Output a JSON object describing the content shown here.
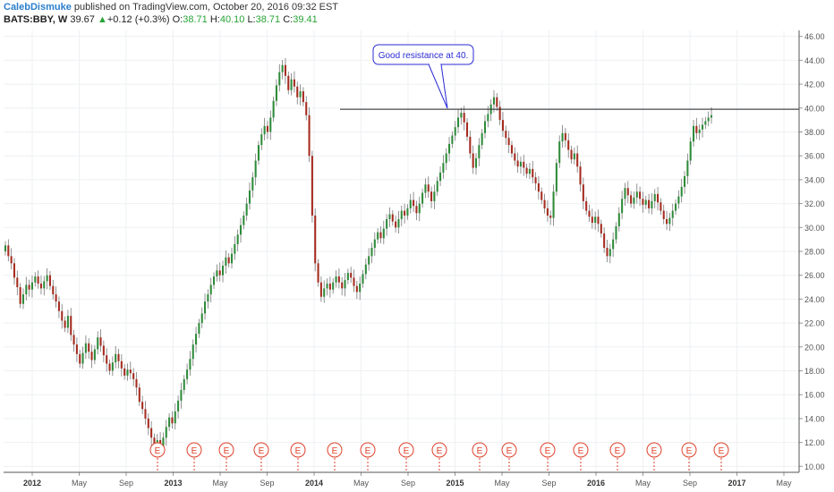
{
  "header": {
    "author": "CalebDismuke",
    "published_text": "published on TradingView.com, October 20, 2016 09:32 EST",
    "symbol": "BATS:BBY, W",
    "last": "39.67",
    "arrow": "▲",
    "change": "+0.12 (+0.3%)",
    "o_label": "O:",
    "o_value": "38.71",
    "h_label": "H:",
    "h_value": "40.10",
    "l_label": "L:",
    "l_value": "38.71",
    "c_label": "C:",
    "c_value": "39.41"
  },
  "colors": {
    "up": "#2e8b3a",
    "down": "#a52b1f",
    "grid": "#eef0f3",
    "axis_text": "#555555",
    "earnings": "#e0402a",
    "callout_border": "#2b2bd6",
    "callout_text": "#2b2bd6"
  },
  "earnings_marker_label": "E",
  "chart_data": {
    "type": "candlestick",
    "title": "",
    "xlabel": "",
    "ylabel": "",
    "x_ticks": [
      "2012",
      "May",
      "Sep",
      "2013",
      "May",
      "Sep",
      "2014",
      "May",
      "Sep",
      "2015",
      "May",
      "Sep",
      "2016",
      "May",
      "Sep",
      "2017",
      "May"
    ],
    "y_ticks": [
      "46.00",
      "44.00",
      "42.00",
      "40.00",
      "38.00",
      "36.00",
      "34.00",
      "32.00",
      "30.00",
      "28.00",
      "26.00",
      "24.00",
      "22.00",
      "20.00",
      "18.00",
      "16.00",
      "14.00",
      "12.00",
      "10.00"
    ],
    "ylim": [
      9.5,
      46.5
    ],
    "grid": true,
    "resistance_level": 39.9,
    "annotation": "Good resistance at 40.",
    "series": [
      {
        "values": [
          [
            28.0,
            28.5
          ],
          [
            28.5,
            27.6
          ],
          [
            27.6,
            27.0
          ],
          [
            27.0,
            25.8
          ],
          [
            25.8,
            25.0
          ],
          [
            25.0,
            23.6
          ],
          [
            23.6,
            24.4
          ],
          [
            24.4,
            25.2
          ],
          [
            25.2,
            24.8
          ],
          [
            24.8,
            25.4
          ],
          [
            25.4,
            25.9
          ],
          [
            25.9,
            25.3
          ],
          [
            25.3,
            24.9
          ],
          [
            24.9,
            25.5
          ],
          [
            25.5,
            26.0
          ],
          [
            26.0,
            25.1
          ],
          [
            25.1,
            24.4
          ],
          [
            24.4,
            23.8
          ],
          [
            23.8,
            23.0
          ],
          [
            23.0,
            22.2
          ],
          [
            22.2,
            21.6
          ],
          [
            21.6,
            22.6
          ],
          [
            22.6,
            21.0
          ],
          [
            21.0,
            20.2
          ],
          [
            20.2,
            19.4
          ],
          [
            19.4,
            18.6
          ],
          [
            18.6,
            19.5
          ],
          [
            19.5,
            20.3
          ],
          [
            20.3,
            19.6
          ],
          [
            19.6,
            18.9
          ],
          [
            18.9,
            19.8
          ],
          [
            19.8,
            20.8
          ],
          [
            20.8,
            20.1
          ],
          [
            20.1,
            19.3
          ],
          [
            19.3,
            18.6
          ],
          [
            18.6,
            18.0
          ],
          [
            18.0,
            18.7
          ],
          [
            18.7,
            19.4
          ],
          [
            19.4,
            18.8
          ],
          [
            18.8,
            18.2
          ],
          [
            18.2,
            17.6
          ],
          [
            17.6,
            18.1
          ],
          [
            18.1,
            17.8
          ],
          [
            17.8,
            17.3
          ],
          [
            17.3,
            16.6
          ],
          [
            16.6,
            15.4
          ],
          [
            15.4,
            14.8
          ],
          [
            14.8,
            14.0
          ],
          [
            14.0,
            13.2
          ],
          [
            13.2,
            12.4
          ],
          [
            12.4,
            11.8
          ],
          [
            11.8,
            12.2
          ],
          [
            12.2,
            11.6
          ],
          [
            11.6,
            12.4
          ],
          [
            12.4,
            13.3
          ],
          [
            13.3,
            14.1
          ],
          [
            14.1,
            13.6
          ],
          [
            13.6,
            14.6
          ],
          [
            14.6,
            15.5
          ],
          [
            15.5,
            16.4
          ],
          [
            16.4,
            17.3
          ],
          [
            17.3,
            18.1
          ],
          [
            18.1,
            19.0
          ],
          [
            19.0,
            20.2
          ],
          [
            20.2,
            21.1
          ],
          [
            21.1,
            22.0
          ],
          [
            22.0,
            22.8
          ],
          [
            22.8,
            23.8
          ],
          [
            23.8,
            24.4
          ],
          [
            24.4,
            25.2
          ],
          [
            25.2,
            25.9
          ],
          [
            25.9,
            26.4
          ],
          [
            26.4,
            26.0
          ],
          [
            26.0,
            26.8
          ],
          [
            26.8,
            27.5
          ],
          [
            27.5,
            27.0
          ],
          [
            27.0,
            27.8
          ],
          [
            27.8,
            28.6
          ],
          [
            28.6,
            29.4
          ],
          [
            29.4,
            30.2
          ],
          [
            30.2,
            31.0
          ],
          [
            31.0,
            32.0
          ],
          [
            32.0,
            33.1
          ],
          [
            33.1,
            34.2
          ],
          [
            34.2,
            35.6
          ],
          [
            35.6,
            36.9
          ],
          [
            36.9,
            37.8
          ],
          [
            37.8,
            38.5
          ],
          [
            38.5,
            38.0
          ],
          [
            38.0,
            39.2
          ],
          [
            39.2,
            40.6
          ],
          [
            40.6,
            41.9
          ],
          [
            41.9,
            43.0
          ],
          [
            43.0,
            43.6
          ],
          [
            43.6,
            42.7
          ],
          [
            42.7,
            41.5
          ],
          [
            41.5,
            42.4
          ],
          [
            42.4,
            41.8
          ],
          [
            41.8,
            40.9
          ],
          [
            40.9,
            41.4
          ],
          [
            41.4,
            40.5
          ],
          [
            40.5,
            39.4
          ],
          [
            39.4,
            36.0
          ],
          [
            36.0,
            31.0
          ],
          [
            31.0,
            27.0
          ],
          [
            27.0,
            25.4
          ],
          [
            25.4,
            24.2
          ],
          [
            24.2,
            24.9
          ],
          [
            24.9,
            25.3
          ],
          [
            25.3,
            24.8
          ],
          [
            24.8,
            25.4
          ],
          [
            25.4,
            25.9
          ],
          [
            25.9,
            25.4
          ],
          [
            25.4,
            24.9
          ],
          [
            24.9,
            25.6
          ],
          [
            25.6,
            26.2
          ],
          [
            26.2,
            25.8
          ],
          [
            25.8,
            25.1
          ],
          [
            25.1,
            24.6
          ],
          [
            24.6,
            25.3
          ],
          [
            25.3,
            26.1
          ],
          [
            26.1,
            26.9
          ],
          [
            26.9,
            27.6
          ],
          [
            27.6,
            28.3
          ],
          [
            28.3,
            29.0
          ],
          [
            29.0,
            29.6
          ],
          [
            29.6,
            29.1
          ],
          [
            29.1,
            29.9
          ],
          [
            29.9,
            30.7
          ],
          [
            30.7,
            31.1
          ],
          [
            31.1,
            30.5
          ],
          [
            30.5,
            30.0
          ],
          [
            30.0,
            30.7
          ],
          [
            30.7,
            31.4
          ],
          [
            31.4,
            31.0
          ],
          [
            31.0,
            31.6
          ],
          [
            31.6,
            32.3
          ],
          [
            32.3,
            31.8
          ],
          [
            31.8,
            31.2
          ],
          [
            31.2,
            32.0
          ],
          [
            32.0,
            32.9
          ],
          [
            32.9,
            33.6
          ],
          [
            33.6,
            33.0
          ],
          [
            33.0,
            32.2
          ],
          [
            32.2,
            33.0
          ],
          [
            33.0,
            33.9
          ],
          [
            33.9,
            34.6
          ],
          [
            34.6,
            35.4
          ],
          [
            35.4,
            36.2
          ],
          [
            36.2,
            37.0
          ],
          [
            37.0,
            37.7
          ],
          [
            37.7,
            38.4
          ],
          [
            38.4,
            39.2
          ],
          [
            39.2,
            39.6
          ],
          [
            39.6,
            38.8
          ],
          [
            38.8,
            37.6
          ],
          [
            37.6,
            36.2
          ],
          [
            36.2,
            35.0
          ],
          [
            35.0,
            35.8
          ],
          [
            35.8,
            36.9
          ],
          [
            36.9,
            37.9
          ],
          [
            37.9,
            38.9
          ],
          [
            38.9,
            39.5
          ],
          [
            39.5,
            40.3
          ],
          [
            40.3,
            40.9
          ],
          [
            40.9,
            40.1
          ],
          [
            40.1,
            39.0
          ],
          [
            39.0,
            38.1
          ],
          [
            38.1,
            37.5
          ],
          [
            37.5,
            36.9
          ],
          [
            36.9,
            36.2
          ],
          [
            36.2,
            35.6
          ],
          [
            35.6,
            35.1
          ],
          [
            35.1,
            35.5
          ],
          [
            35.5,
            35.0
          ],
          [
            35.0,
            34.5
          ],
          [
            34.5,
            34.9
          ],
          [
            34.9,
            34.2
          ],
          [
            34.2,
            33.7
          ],
          [
            33.7,
            33.0
          ],
          [
            33.0,
            32.3
          ],
          [
            32.3,
            31.6
          ],
          [
            31.6,
            31.0
          ],
          [
            31.0,
            30.8
          ],
          [
            30.8,
            33.0
          ],
          [
            33.0,
            35.4
          ],
          [
            35.4,
            37.2
          ],
          [
            37.2,
            37.9
          ],
          [
            37.9,
            37.3
          ],
          [
            37.3,
            36.5
          ],
          [
            36.5,
            35.7
          ],
          [
            35.7,
            36.2
          ],
          [
            36.2,
            35.1
          ],
          [
            35.1,
            33.6
          ],
          [
            33.6,
            32.2
          ],
          [
            32.2,
            31.4
          ],
          [
            31.4,
            30.9
          ],
          [
            30.9,
            30.4
          ],
          [
            30.4,
            30.9
          ],
          [
            30.9,
            30.3
          ],
          [
            30.3,
            29.5
          ],
          [
            29.5,
            28.3
          ],
          [
            28.3,
            27.6
          ],
          [
            27.6,
            28.2
          ],
          [
            28.2,
            29.0
          ],
          [
            29.0,
            30.1
          ],
          [
            30.1,
            31.2
          ],
          [
            31.2,
            32.4
          ],
          [
            32.4,
            33.3
          ],
          [
            33.3,
            32.7
          ],
          [
            32.7,
            32.0
          ],
          [
            32.0,
            32.5
          ],
          [
            32.5,
            33.0
          ],
          [
            33.0,
            32.4
          ],
          [
            32.4,
            31.9
          ],
          [
            31.9,
            32.3
          ],
          [
            32.3,
            31.6
          ],
          [
            31.6,
            32.2
          ],
          [
            32.2,
            32.8
          ],
          [
            32.8,
            32.1
          ],
          [
            32.1,
            31.4
          ],
          [
            31.4,
            30.7
          ],
          [
            30.7,
            30.3
          ],
          [
            30.3,
            30.8
          ],
          [
            30.8,
            31.4
          ],
          [
            31.4,
            32.0
          ],
          [
            32.0,
            32.6
          ],
          [
            32.6,
            33.4
          ],
          [
            33.4,
            34.3
          ],
          [
            34.3,
            35.6
          ],
          [
            35.6,
            37.2
          ],
          [
            37.2,
            38.5
          ],
          [
            38.5,
            37.9
          ],
          [
            37.9,
            38.2
          ],
          [
            38.2,
            38.6
          ],
          [
            38.6,
            38.9
          ],
          [
            38.9,
            39.2
          ],
          [
            39.2,
            39.4
          ]
        ]
      }
    ],
    "earnings_markers": 16
  }
}
